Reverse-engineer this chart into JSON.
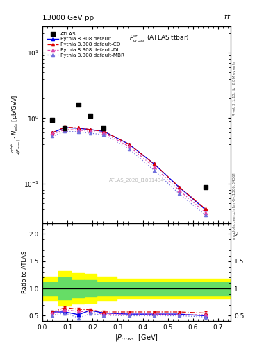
{
  "title_top": "13000 GeV pp",
  "title_top_right": "t$\\bar{t}$",
  "plot_title": "$P^{t\\bar{t}}_{cross}$ (ATLAS ttbar)",
  "ylabel_main": "$\\frac{d^2\\sigma^u}{d\\left|P_{cross}\\right|}\\cdot N_{jets}$ [pb/GeV]",
  "ylabel_ratio": "Ratio to ATLAS",
  "xlabel": "$|P_{cross}|$ [GeV]",
  "watermark": "ATLAS_2020_I1801434",
  "right_label_top": "Rivet 3.1.10, $\\geq$ 2.8M events",
  "right_label_bottom": "mcplots.cern.ch [arXiv:1306.3436]",
  "atlas_x": [
    0.04,
    0.09,
    0.145,
    0.19,
    0.245,
    0.65
  ],
  "atlas_y": [
    0.93,
    0.7,
    1.6,
    1.08,
    0.7,
    0.088
  ],
  "mc_x": [
    0.04,
    0.09,
    0.145,
    0.19,
    0.245,
    0.345,
    0.445,
    0.545,
    0.65
  ],
  "default_y": [
    0.6,
    0.72,
    0.7,
    0.67,
    0.63,
    0.4,
    0.2,
    0.088,
    0.04
  ],
  "cd_y": [
    0.6,
    0.73,
    0.71,
    0.67,
    0.63,
    0.4,
    0.2,
    0.089,
    0.041
  ],
  "dl_y": [
    0.57,
    0.67,
    0.66,
    0.63,
    0.6,
    0.37,
    0.18,
    0.079,
    0.036
  ],
  "mbr_y": [
    0.53,
    0.63,
    0.62,
    0.59,
    0.56,
    0.34,
    0.16,
    0.07,
    0.033
  ],
  "ratio_default": [
    0.57,
    0.57,
    0.52,
    0.6,
    0.55,
    0.53,
    0.53,
    0.53,
    0.5
  ],
  "ratio_cd": [
    0.57,
    0.65,
    0.62,
    0.61,
    0.57,
    0.57,
    0.57,
    0.57,
    0.55
  ],
  "ratio_dl": [
    0.54,
    0.61,
    0.58,
    0.57,
    0.53,
    0.53,
    0.53,
    0.52,
    0.52
  ],
  "ratio_mbr": [
    0.51,
    0.55,
    0.46,
    0.54,
    0.51,
    0.5,
    0.5,
    0.5,
    0.48
  ],
  "ratio_err_default": [
    0.025,
    0.025,
    0.025,
    0.025,
    0.025,
    0.015,
    0.015,
    0.015,
    0.035
  ],
  "ratio_err_cd": [
    0.025,
    0.025,
    0.025,
    0.025,
    0.025,
    0.015,
    0.015,
    0.015,
    0.035
  ],
  "ratio_err_dl": [
    0.025,
    0.025,
    0.025,
    0.025,
    0.025,
    0.015,
    0.015,
    0.015,
    0.035
  ],
  "ratio_err_mbr": [
    0.025,
    0.025,
    0.025,
    0.025,
    0.025,
    0.015,
    0.015,
    0.015,
    0.035
  ],
  "bin_edges": [
    0.0,
    0.065,
    0.115,
    0.165,
    0.215,
    0.295,
    0.75
  ],
  "yellow_lo": [
    0.78,
    0.68,
    0.72,
    0.73,
    0.78,
    0.82
  ],
  "yellow_hi": [
    1.22,
    1.32,
    1.28,
    1.27,
    1.22,
    1.18
  ],
  "green_lo": [
    0.88,
    0.8,
    0.84,
    0.85,
    0.88,
    0.88
  ],
  "green_hi": [
    1.12,
    1.2,
    1.16,
    1.15,
    1.12,
    1.12
  ],
  "color_default": "#0000ee",
  "color_cd": "#dd0000",
  "color_dl": "#dd44aa",
  "color_mbr": "#7070dd",
  "ylim_main": [
    0.025,
    25
  ],
  "ylim_ratio": [
    0.4,
    2.2
  ],
  "xlim": [
    0.0,
    0.75
  ]
}
